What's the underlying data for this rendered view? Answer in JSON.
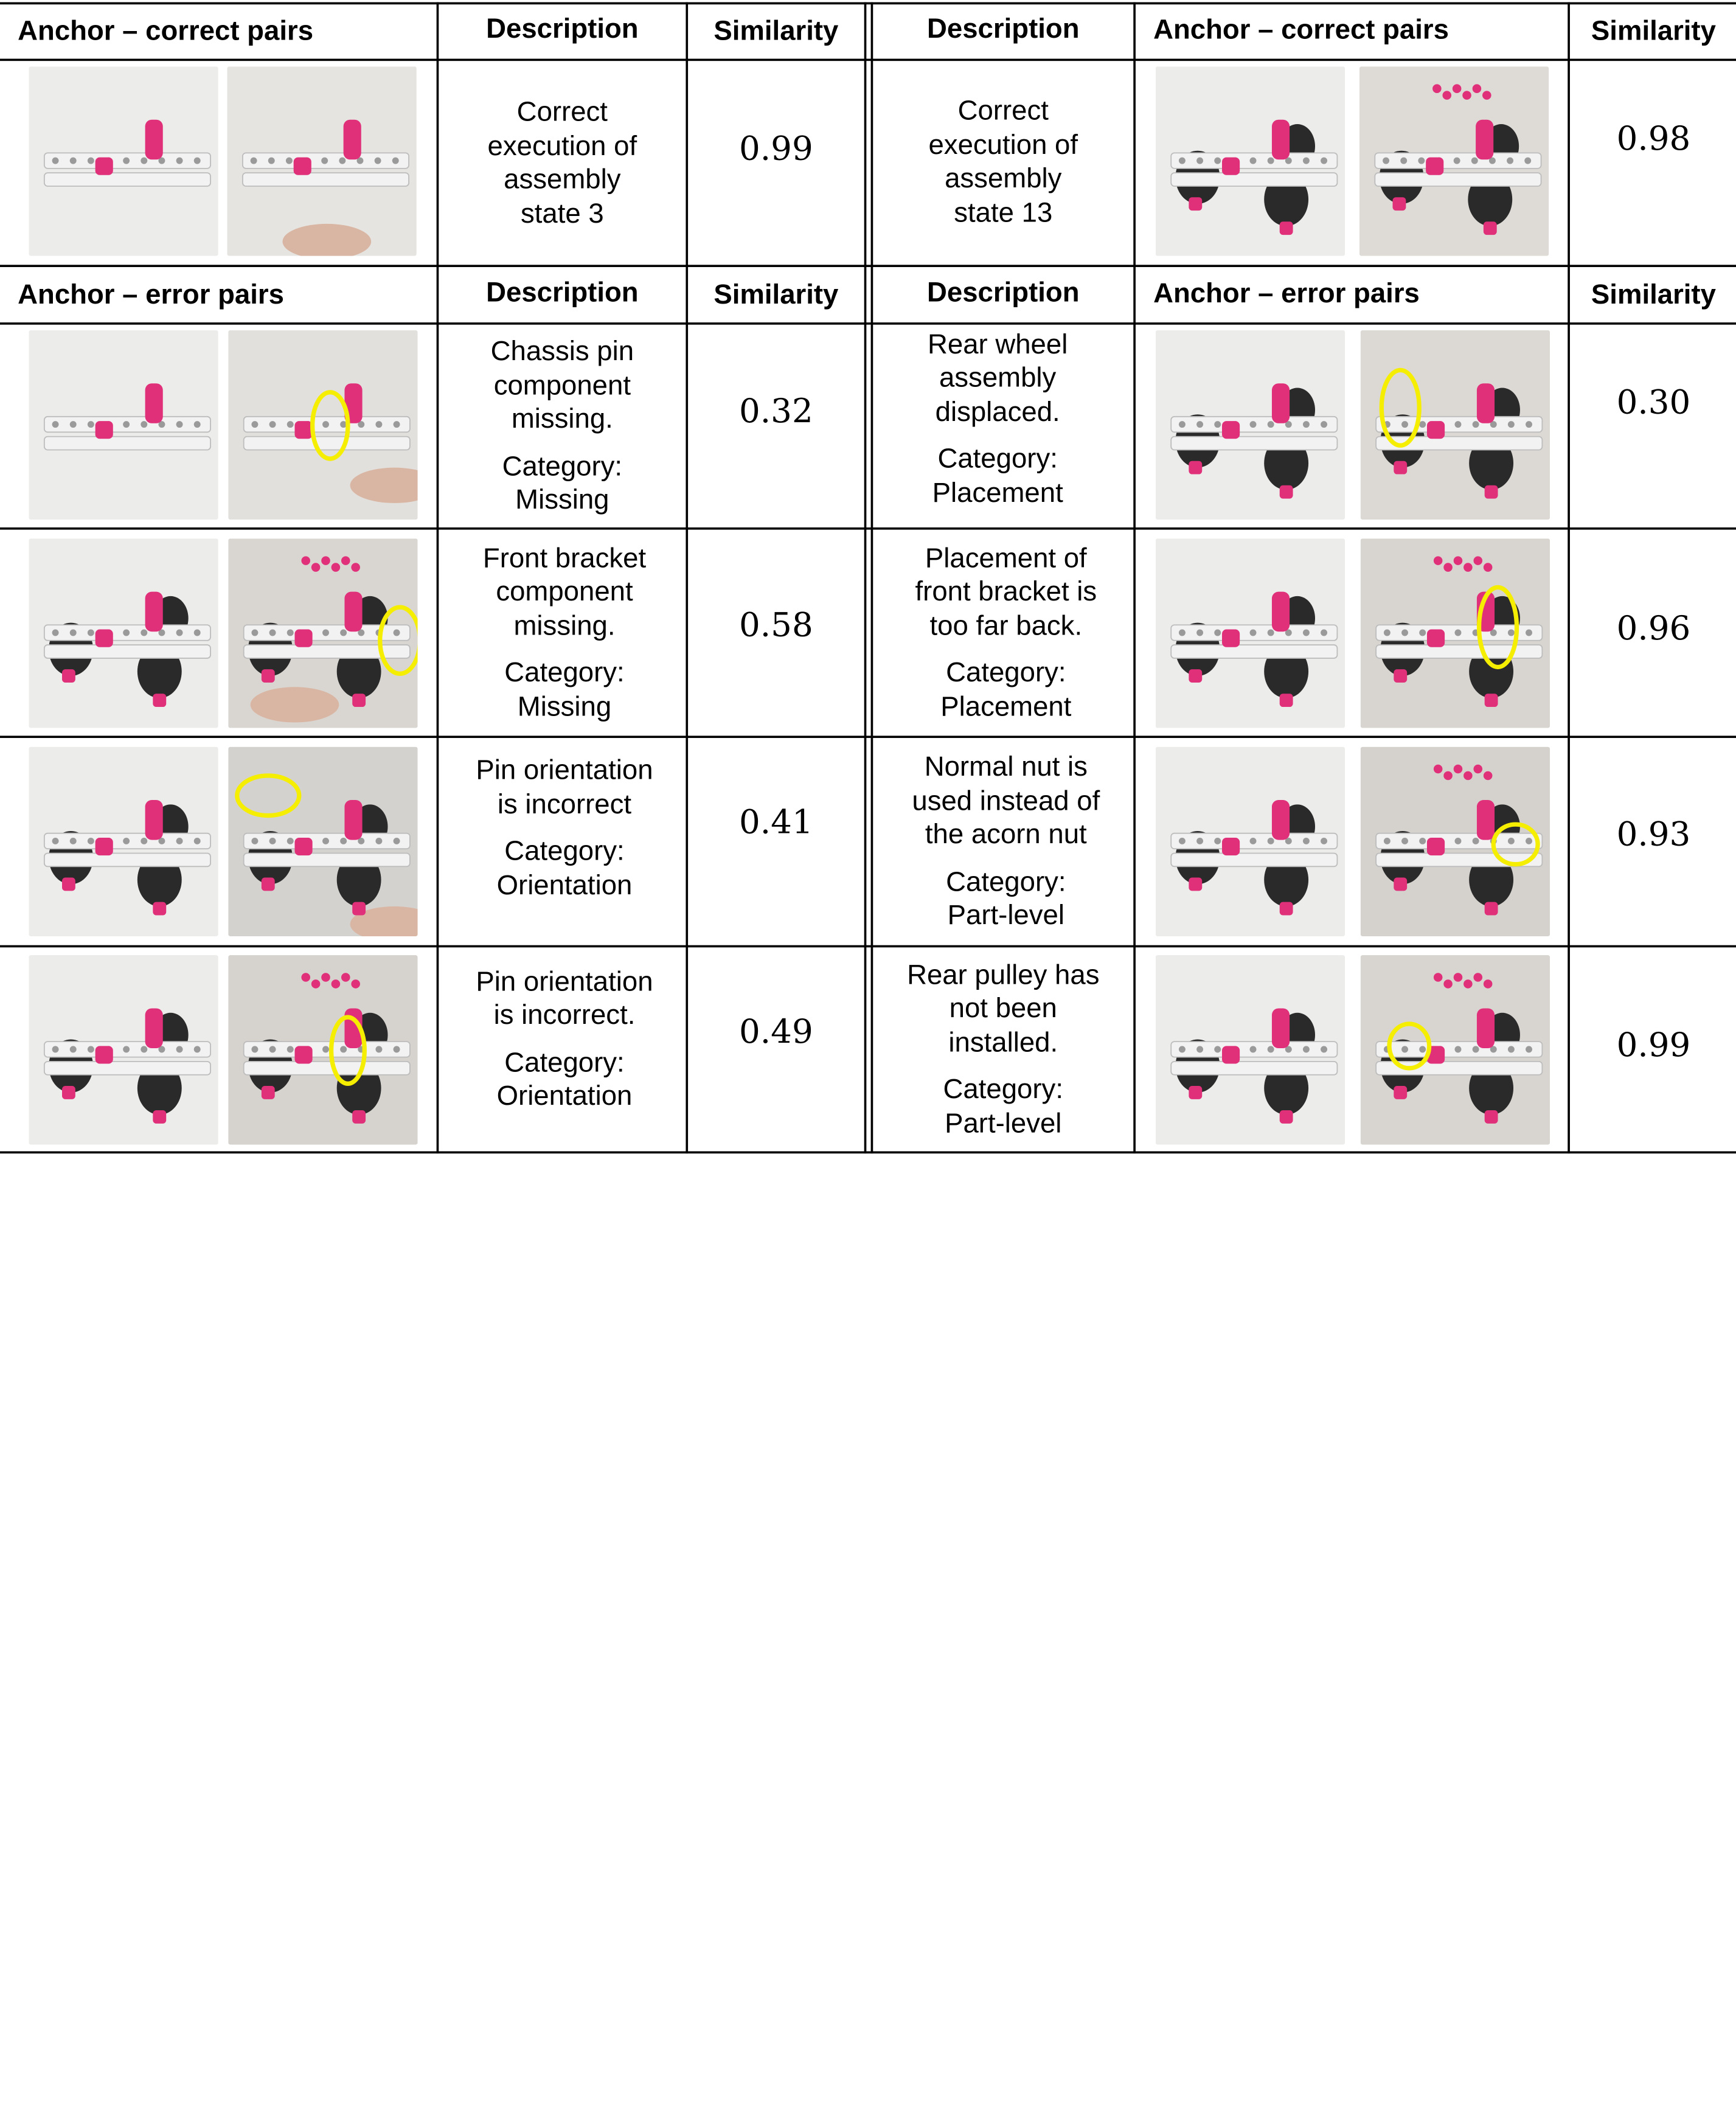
{
  "headers": {
    "anchor_correct": "Anchor – correct pairs",
    "anchor_error": "Anchor – error pairs",
    "description": "Description",
    "similarity": "Similarity"
  },
  "colors": {
    "highlight_circle": "#f5ee00",
    "pink_part": "#e0307a",
    "wheel": "#2a2a2a",
    "white_part": "#f2f2f2",
    "table_line": "#000000"
  },
  "left": {
    "correct": {
      "description": "Correct\nexecution of\nassembly\nstate 3",
      "similarity": "0.99"
    },
    "errors": [
      {
        "description": "Chassis pin\ncomponent\nmissing.",
        "category": "Category:\nMissing",
        "similarity": "0.32"
      },
      {
        "description": "Front bracket\ncomponent\nmissing.",
        "category": "Category:\nMissing",
        "similarity": "0.58"
      },
      {
        "description": "Pin orientation\nis incorrect",
        "category": "Category:\nOrientation",
        "similarity": "0.41"
      },
      {
        "description": "Pin orientation\nis incorrect.",
        "category": "Category:\nOrientation",
        "similarity": "0.49"
      }
    ]
  },
  "right": {
    "correct": {
      "description": "Correct\nexecution of\nassembly\nstate 13",
      "similarity": "0.98"
    },
    "errors": [
      {
        "description": "Rear wheel\nassembly\ndisplaced.",
        "category": "Category:\nPlacement",
        "similarity": "0.30"
      },
      {
        "description": "Placement of\nfront bracket is\ntoo far back.",
        "category": "Category:\nPlacement",
        "similarity": "0.96"
      },
      {
        "description": "Normal nut is\nused instead of\nthe acorn nut",
        "category": "Category:\nPart-level",
        "similarity": "0.93"
      },
      {
        "description": "Rear pulley has\nnot been\ninstalled.",
        "category": "Category:\nPart-level",
        "similarity": "0.99"
      }
    ]
  }
}
